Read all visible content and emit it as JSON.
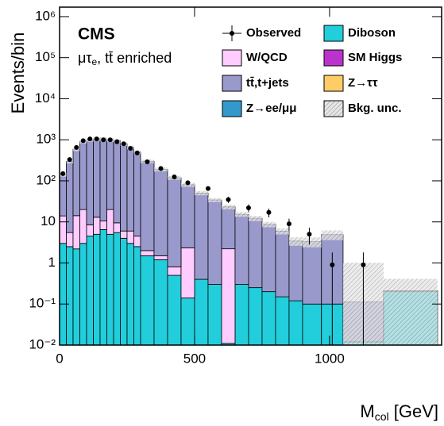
{
  "chart_data": {
    "type": "stacked-histogram",
    "experiment": "CMS",
    "channel": "μτ",
    "channel_sub": "e",
    "channel_rest": ", tt̄ enriched",
    "y_label": "Events/bin",
    "x_label": "M",
    "x_label_sub": "col",
    "x_label_rest": " [GeV]",
    "log_y": true,
    "xlim": [
      0,
      1415
    ],
    "xticks": [
      0,
      500,
      1000
    ],
    "ylim": [
      0.01,
      1700000
    ],
    "yticks": [
      {
        "value": 0.01,
        "label": "10⁻²"
      },
      {
        "value": 0.1,
        "label": "10⁻¹"
      },
      1,
      10,
      {
        "value": 100,
        "label": "10²"
      },
      {
        "value": 1000,
        "label": "10³"
      },
      {
        "value": 10000,
        "label": "10⁴"
      },
      {
        "value": 100000,
        "label": "10⁵"
      },
      {
        "value": 1000000,
        "label": "10⁶"
      }
    ],
    "bins": [
      0,
      25,
      50,
      75,
      100,
      125,
      150,
      175,
      200,
      225,
      250,
      275,
      300,
      350,
      400,
      450,
      500,
      550,
      600,
      650,
      700,
      750,
      800,
      850,
      900,
      970,
      1050,
      1200,
      1400
    ],
    "series": [
      {
        "name": "Diboson",
        "color": "#22cedb",
        "values": [
          3,
          2.5,
          2.2,
          3,
          4.5,
          5,
          6.5,
          5,
          5.5,
          4,
          3,
          2.5,
          1.5,
          1.2,
          0.5,
          0.14,
          0.4,
          0.3,
          0.011,
          0.3,
          0.25,
          0.2,
          0.15,
          0.12,
          0.1,
          0.1,
          0.012,
          0.2
        ]
      },
      {
        "name": "W/QCD",
        "color": "#ffccff",
        "values": [
          11,
          3,
          12,
          17,
          4,
          8,
          4,
          15,
          4,
          2,
          3,
          2,
          0.5,
          0.3,
          0.3,
          2.2,
          0,
          0,
          2.2,
          0,
          0,
          0,
          0,
          0,
          0,
          0,
          0,
          0
        ]
      },
      {
        "name": "tt̄,t+jets",
        "color": "#9999cc",
        "values": [
          126,
          292,
          576,
          880,
          983,
          1029,
          1039,
          975,
          940,
          791,
          644,
          495,
          298,
          188,
          118,
          78,
          50,
          34,
          21,
          15,
          12,
          8.5,
          5.8,
          3.3,
          3.2,
          4.8,
          0.1,
          0.01
        ]
      }
    ],
    "bkg_unc": {
      "name": "Bkg. unc.",
      "color": "#bbbbbb",
      "values": [
        14,
        30,
        60,
        90,
        100,
        105,
        105,
        100,
        95,
        80,
        65,
        50,
        30,
        20,
        13,
        9,
        6,
        4,
        3,
        2,
        1.8,
        1.3,
        1,
        0.8,
        0.9,
        1.3,
        0.9,
        0.2
      ]
    },
    "legend_only": [
      {
        "name": "SM Higgs",
        "color": "#bb33cc"
      },
      {
        "name": "Z→ττ",
        "color": "#ffcc66"
      },
      {
        "name": "Z→ee/μμ",
        "color": "#3399cc"
      }
    ],
    "observed": {
      "name": "Observed",
      "color": "#000000",
      "x": [
        12.5,
        37.5,
        62.5,
        87.5,
        112.5,
        137.5,
        162.5,
        187.5,
        212.5,
        237.5,
        262.5,
        287.5,
        325,
        375,
        425,
        475,
        550,
        625,
        700,
        775,
        850,
        925,
        1010,
        1125
      ],
      "values": [
        150,
        330,
        650,
        950,
        1050,
        1050,
        1000,
        1000,
        900,
        800,
        620,
        480,
        290,
        200,
        125,
        90,
        65,
        35,
        22,
        17,
        9,
        5,
        0.9,
        0.9
      ],
      "errors": [
        12,
        18,
        25,
        30,
        32,
        32,
        32,
        32,
        30,
        28,
        25,
        22,
        17,
        14,
        11,
        9,
        8,
        6,
        4.7,
        4.1,
        3,
        2.2,
        0.9,
        0.9
      ]
    }
  }
}
